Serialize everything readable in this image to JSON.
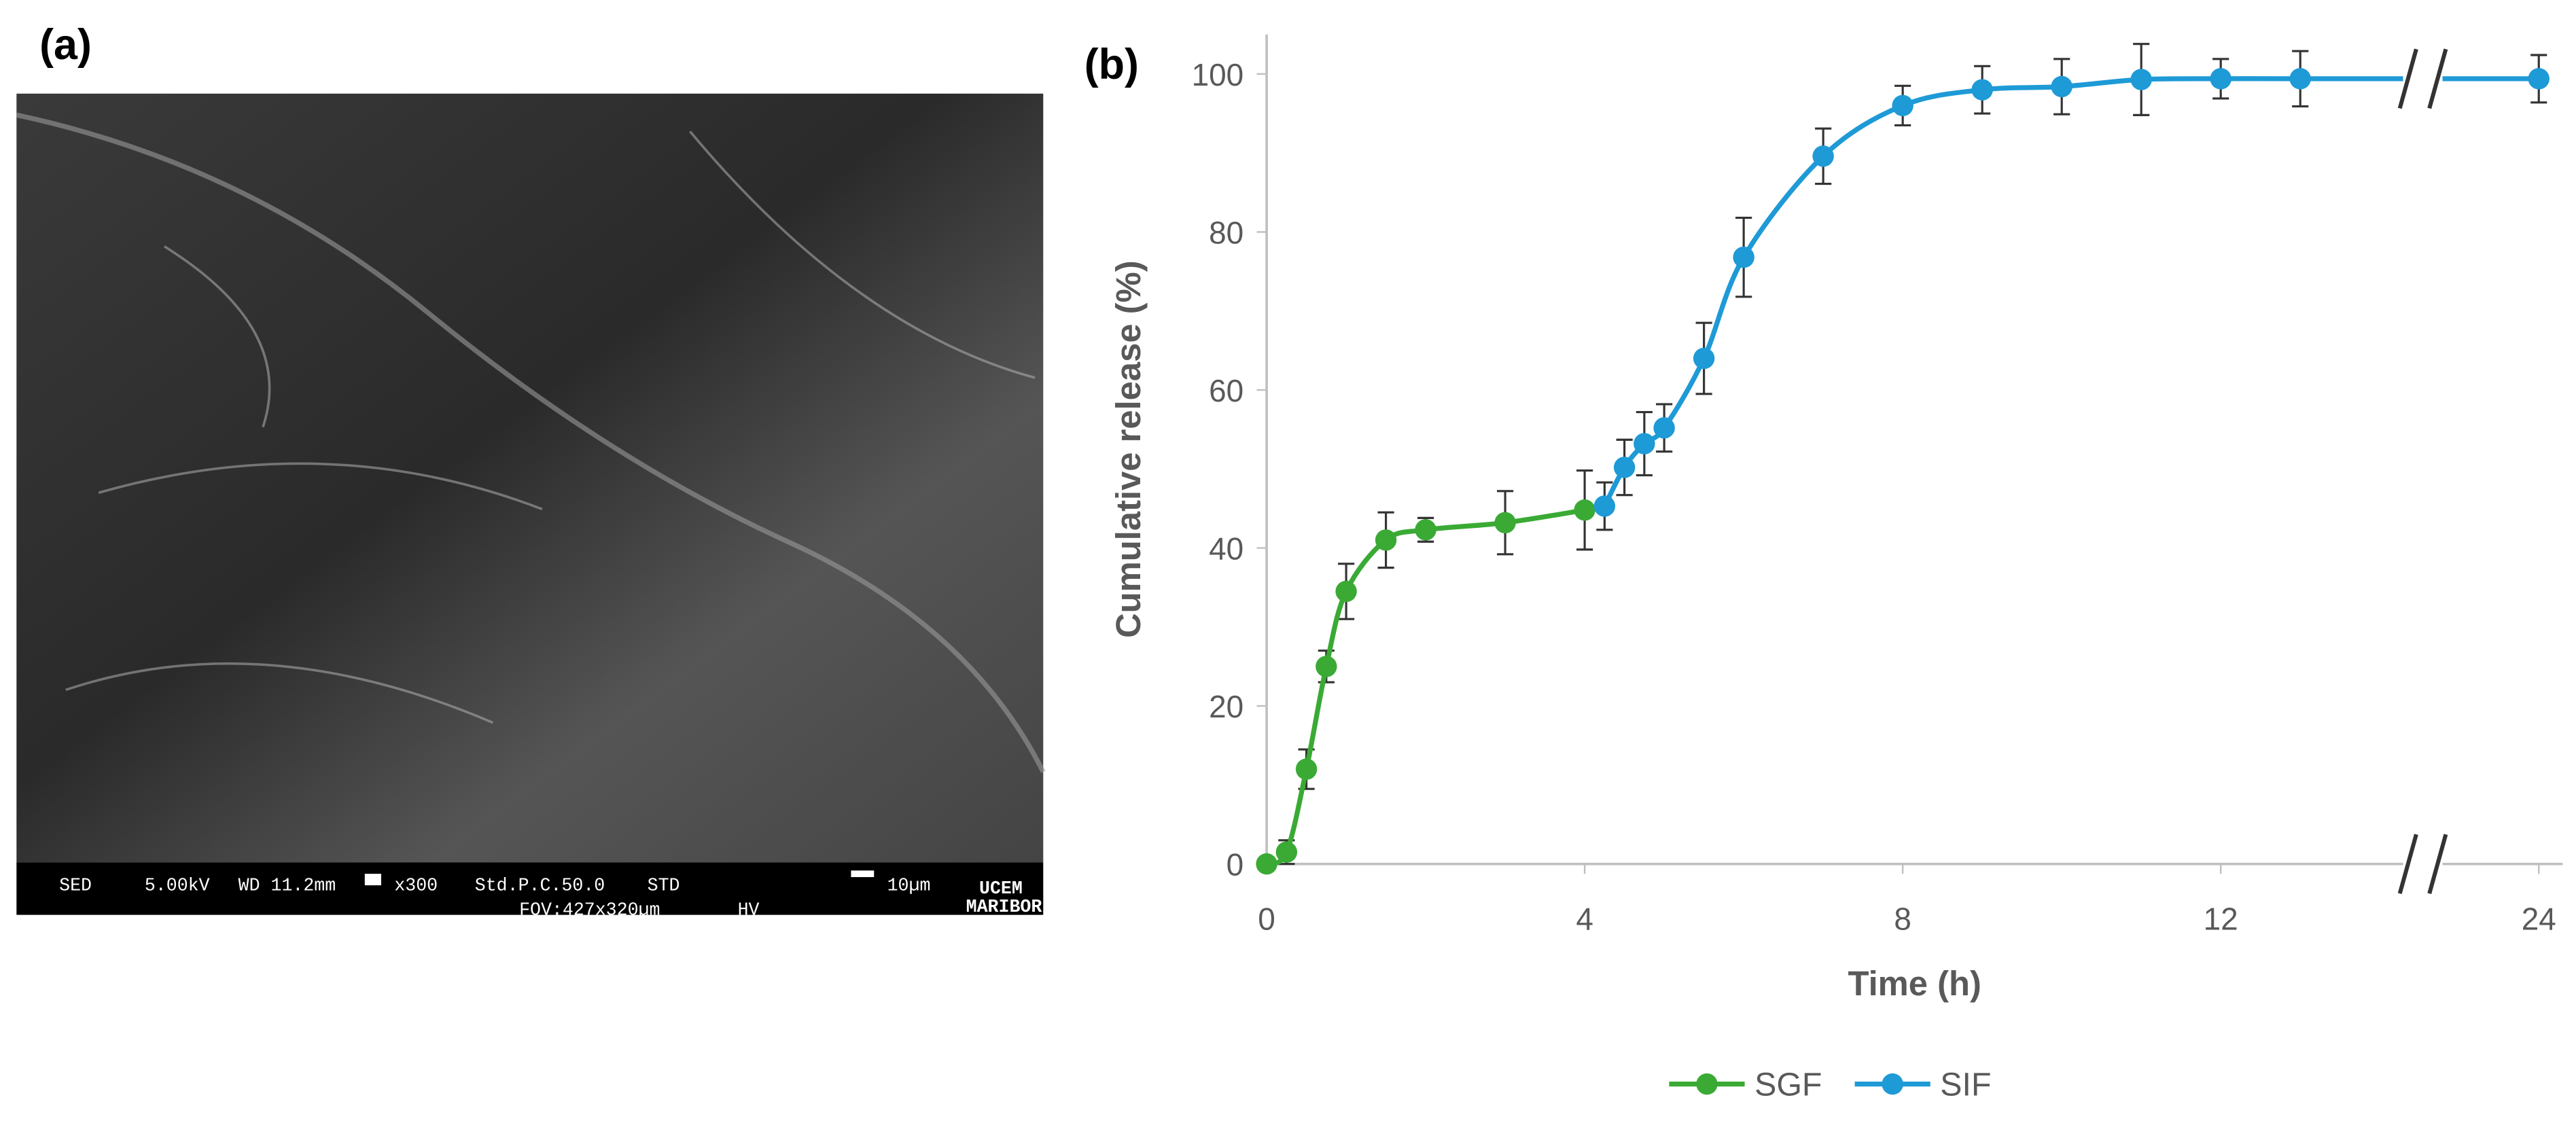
{
  "panel_a": {
    "label": "(a)",
    "info": [
      "SED",
      "5.00kV",
      "WD 11.2mm",
      "x300",
      "Std.P.C.50.0",
      "STD",
      "FOV:427x320µm",
      "HV",
      "10µm",
      "UCEM",
      "MARIBOR"
    ]
  },
  "chart_data": {
    "type": "line",
    "panel_label": "(b)",
    "xlabel": "Time (h)",
    "ylabel": "Cumulative release (%)",
    "xlim": [
      0,
      24.3
    ],
    "x_break": [
      14.5,
      22.5
    ],
    "xticks": [
      0,
      4,
      8,
      12,
      24
    ],
    "ylim": [
      0,
      105
    ],
    "yticks": [
      0,
      20,
      40,
      60,
      80,
      100
    ],
    "grid": false,
    "legend": "bottom",
    "smooth": true,
    "series": [
      {
        "name": "SGF",
        "color": "#3aaa35",
        "x": [
          0,
          0.25,
          0.5,
          0.75,
          1,
          1.5,
          2,
          3,
          4
        ],
        "values": [
          0,
          1.5,
          12,
          25,
          34.5,
          41,
          42.3,
          43.2,
          44.8
        ],
        "errors": [
          0.5,
          1.5,
          2.5,
          2,
          3.5,
          3.5,
          1.5,
          4,
          5
        ]
      },
      {
        "name": "SIF",
        "color": "#1e9ad6",
        "x": [
          4.25,
          4.5,
          4.75,
          5,
          5.5,
          6,
          7,
          8,
          9,
          10,
          11,
          12,
          13,
          24
        ],
        "values": [
          45.3,
          50.2,
          53.2,
          55.2,
          64,
          76.8,
          89.6,
          96,
          98,
          98.4,
          99.3,
          99.4,
          99.4,
          99.4
        ],
        "errors": [
          3,
          3.5,
          4,
          3,
          4.5,
          5,
          3.5,
          2.5,
          3,
          3.5,
          4.5,
          2.5,
          3.5,
          3
        ]
      }
    ]
  }
}
